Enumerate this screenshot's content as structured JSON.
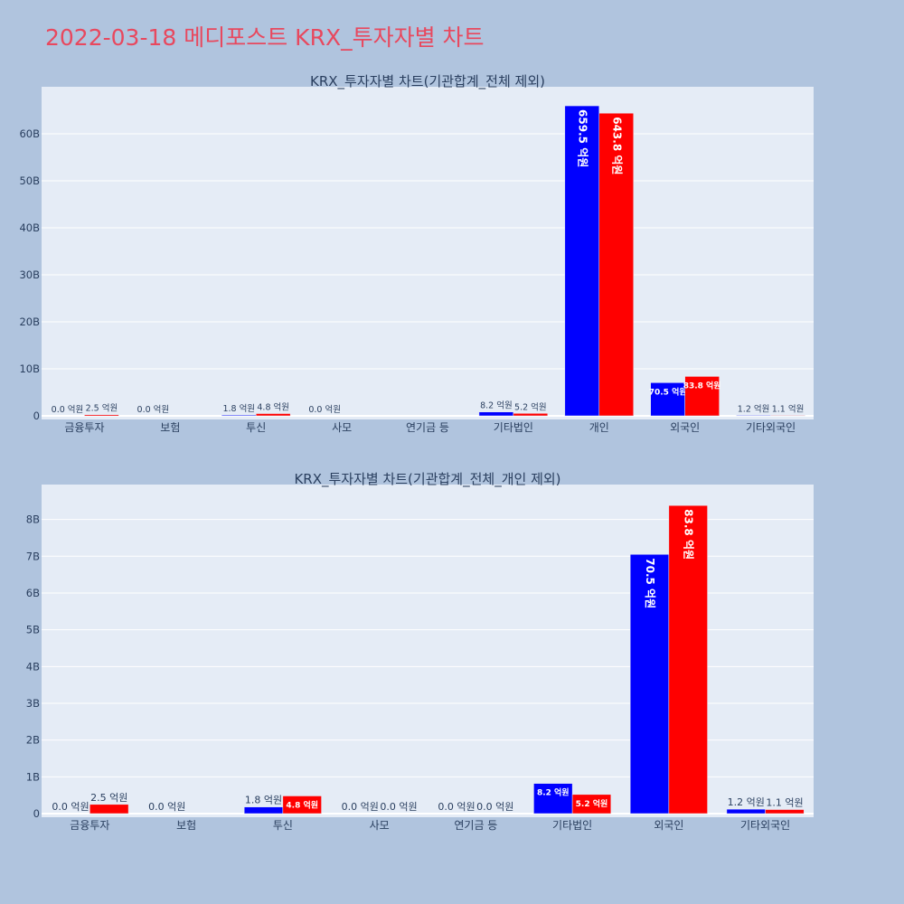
{
  "page": {
    "title": "2022-03-18 메디포스트 KRX_투자자별 차트"
  },
  "colors": {
    "buy": "#0000ff",
    "sell": "#ff0000",
    "plot_bg": "#e5ecf6",
    "page_bg": "#b0c4de",
    "grid": "#ffffff"
  },
  "chart_data": [
    {
      "type": "bar",
      "title": "KRX_투자자별 차트(기관합계_전체 제외)",
      "categories": [
        "금융투자",
        "보험",
        "투신",
        "사모",
        "연기금 등",
        "기타법인",
        "개인",
        "외국인",
        "기타외국인"
      ],
      "series": [
        {
          "values": [
            0.0,
            0.0,
            0.18,
            0.0,
            null,
            0.82,
            65.95,
            7.05,
            0.12
          ],
          "labels": [
            "0.0 억원",
            "0.0 억원",
            "1.8 억원",
            "0.0 억원",
            "",
            "8.2 억원",
            "659.5 억원",
            "70.5 억원",
            "1.2 억원"
          ]
        },
        {
          "values": [
            0.25,
            null,
            0.48,
            null,
            null,
            0.52,
            64.38,
            8.38,
            0.11
          ],
          "labels": [
            "2.5 억원",
            "",
            "4.8 억원",
            "",
            "",
            "5.2 억원",
            "643.8 억원",
            "83.8 억원",
            "1.1 억원"
          ]
        }
      ],
      "yticks": [
        "0",
        "10B",
        "20B",
        "30B",
        "40B",
        "50B",
        "60B"
      ],
      "ylim": [
        0,
        70
      ],
      "grid": true,
      "legend": "none"
    },
    {
      "type": "bar",
      "title": "KRX_투자자별 차트(기관합계_전체_개인 제외)",
      "categories": [
        "금융투자",
        "보험",
        "투신",
        "사모",
        "연기금 등",
        "기타법인",
        "외국인",
        "기타외국인"
      ],
      "series": [
        {
          "values": [
            0.0,
            0.0,
            0.18,
            0.0,
            0.0,
            0.82,
            7.05,
            0.12
          ],
          "labels": [
            "0.0 억원",
            "0.0 억원",
            "1.8 억원",
            "0.0 억원",
            "0.0 억원",
            "8.2 억원",
            "70.5 억원",
            "1.2 억원"
          ]
        },
        {
          "values": [
            0.25,
            null,
            0.48,
            0.0,
            0.0,
            0.52,
            8.38,
            0.11
          ],
          "labels": [
            "2.5 억원",
            "",
            "4.8 억원",
            "0.0 억원",
            "0.0 억원",
            "5.2 억원",
            "83.8 억원",
            "1.1 억원"
          ]
        }
      ],
      "yticks": [
        "0",
        "1B",
        "2B",
        "3B",
        "4B",
        "5B",
        "6B",
        "7B",
        "8B"
      ],
      "ylim": [
        0,
        8.95
      ],
      "grid": true,
      "legend": "none"
    }
  ]
}
